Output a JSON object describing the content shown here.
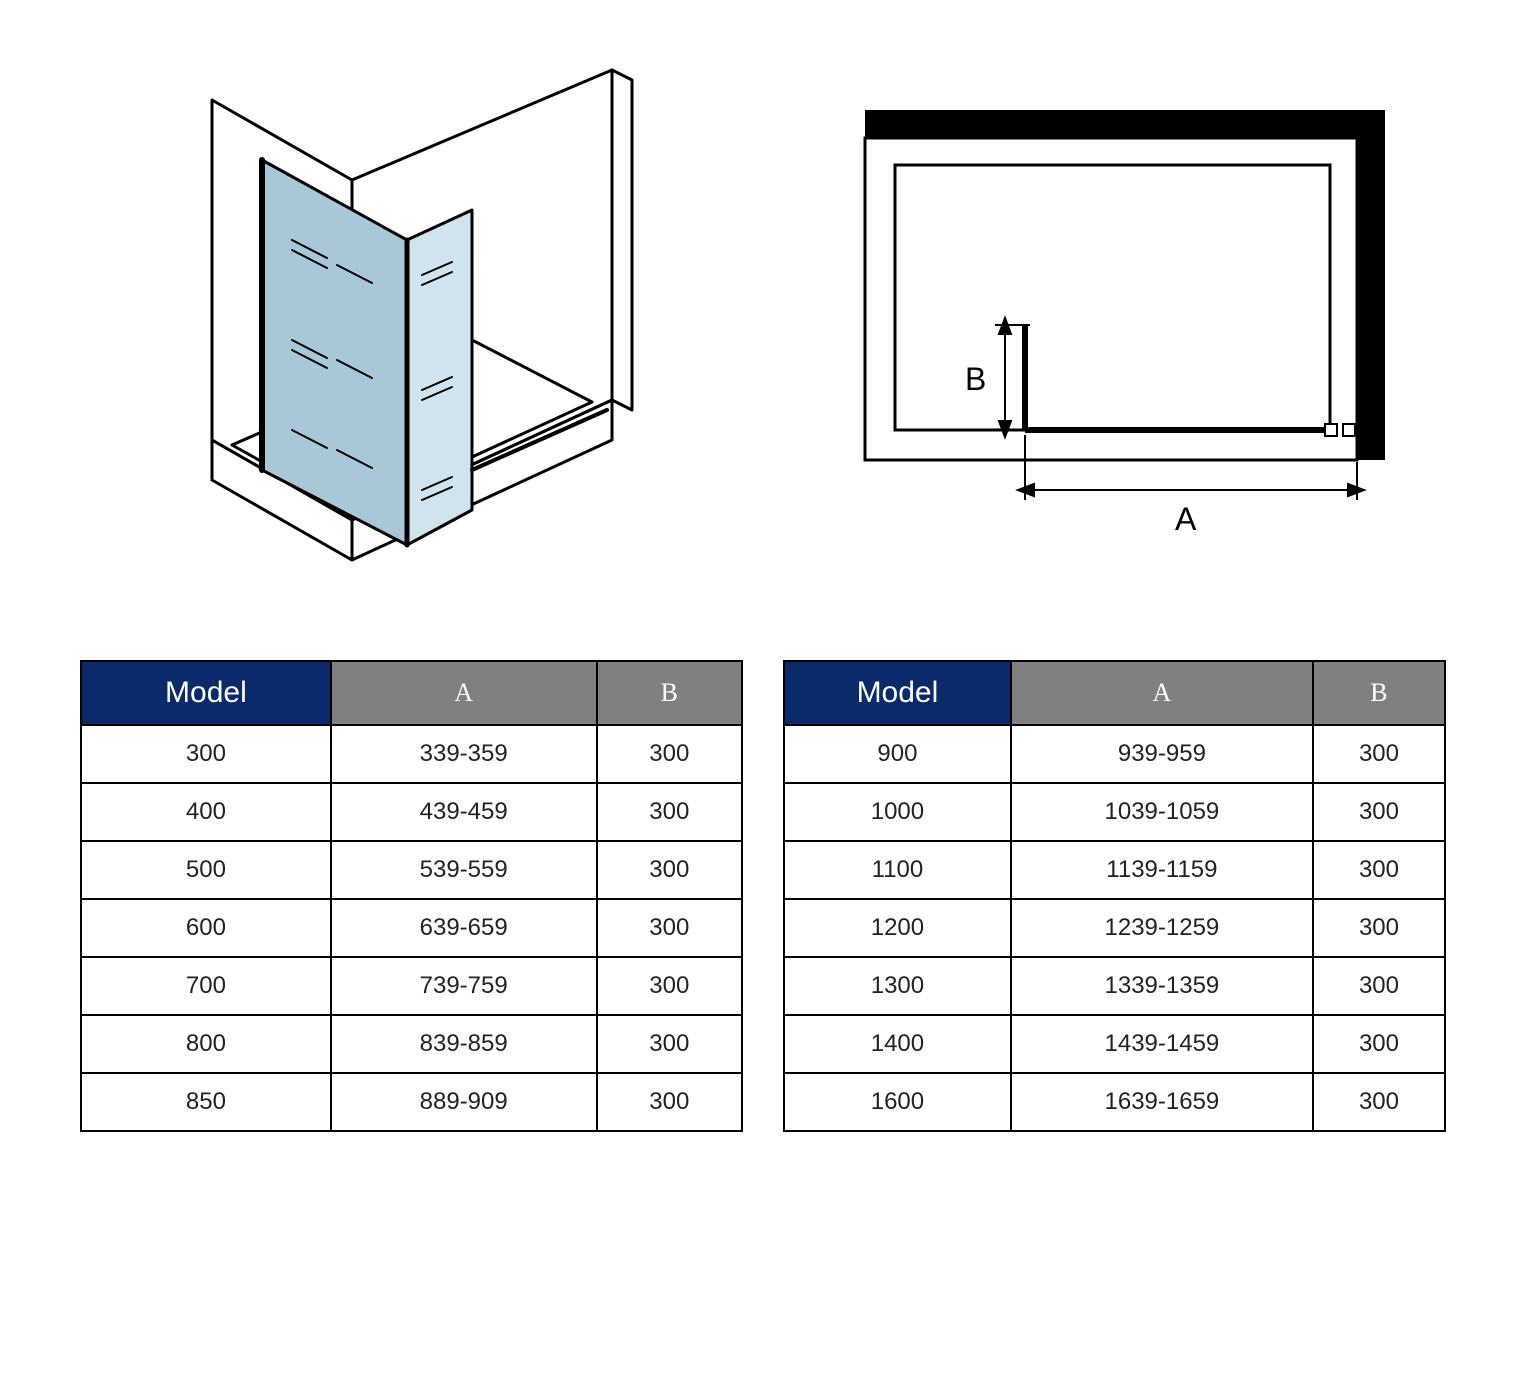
{
  "diagrams": {
    "iso": {
      "glass_fill": "#a8c8d8",
      "stroke": "#000000",
      "stroke_width": 3
    },
    "plan": {
      "frame_fill": "#000000",
      "stroke": "#000000",
      "label_A": "A",
      "label_B": "B",
      "font_size": 28
    }
  },
  "tables": {
    "header_bg_model": "#0b2a6b",
    "header_bg_dim": "#808080",
    "header_fg": "#ffffff",
    "border_color": "#000000",
    "cell_font_size": 24,
    "columns": [
      "Model",
      "A",
      "B"
    ],
    "left": {
      "rows": [
        [
          "300",
          "339-359",
          "300"
        ],
        [
          "400",
          "439-459",
          "300"
        ],
        [
          "500",
          "539-559",
          "300"
        ],
        [
          "600",
          "639-659",
          "300"
        ],
        [
          "700",
          "739-759",
          "300"
        ],
        [
          "800",
          "839-859",
          "300"
        ],
        [
          "850",
          "889-909",
          "300"
        ]
      ]
    },
    "right": {
      "rows": [
        [
          "900",
          "939-959",
          "300"
        ],
        [
          "1000",
          "1039-1059",
          "300"
        ],
        [
          "1100",
          "1139-1159",
          "300"
        ],
        [
          "1200",
          "1239-1259",
          "300"
        ],
        [
          "1300",
          "1339-1359",
          "300"
        ],
        [
          "1400",
          "1439-1459",
          "300"
        ],
        [
          "1600",
          "1639-1659",
          "300"
        ]
      ]
    }
  }
}
